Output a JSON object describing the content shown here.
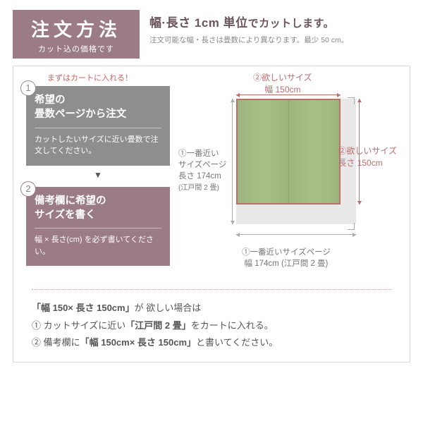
{
  "header": {
    "title": "注文方法",
    "subtitle": "カット込の価格です",
    "line1_a": "幅·長さ 1cm 単位",
    "line1_b": "でカットします。",
    "line2": "注文可能な幅・長さは畳数により異なります。最少 50 cm。"
  },
  "steps": {
    "pretext": "まずはカートに入れる！",
    "s1_title_a": "希望の",
    "s1_title_b": "畳数ページから注文",
    "s1_body": "カットしたいサイズに近い畳数で注文してください。",
    "s2_title_a": "備考欄に希望の",
    "s2_title_b": "サイズを書く",
    "s2_body": "幅 × 長さ(cm) を必ず書いてください。",
    "arrow": "▼"
  },
  "diagram": {
    "top_label": "②欲しいサイズ",
    "top_val": "幅 150cm",
    "left_a": "①一番近い",
    "left_b": "サイズページ",
    "left_c": "長さ 174cm",
    "left_d": "(江戸間 2 畳)",
    "right_label": "②欲しいサイズ",
    "right_val": "長さ 150cm",
    "bottom_a": "①一番近いサイズページ",
    "bottom_b": "幅 174cm (江戸間 2 畳)"
  },
  "footer": {
    "line1_a": "「幅 150× 長さ 150cm」",
    "line1_b": "が 欲しい場合は",
    "line2_a": "① カットサイズに近い",
    "line2_b": "「江戸間 2 畳」",
    "line2_c": "をカートに入れる。",
    "line3_a": "② 備考欄に",
    "line3_b": "「幅 150cm× 長さ 150cm」",
    "line3_c": "と書いてください。"
  }
}
